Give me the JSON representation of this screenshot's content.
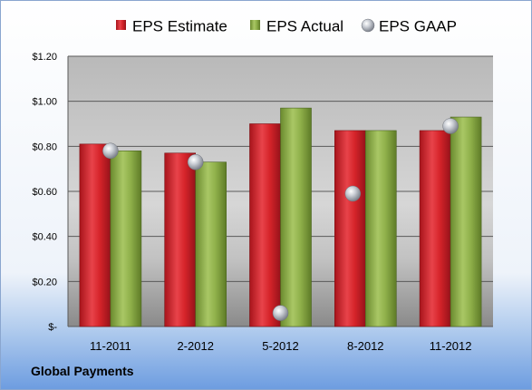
{
  "company": "Global Payments",
  "chart_data": {
    "type": "bar",
    "categories": [
      "11-2011",
      "2-2012",
      "5-2012",
      "8-2012",
      "11-2012"
    ],
    "series": [
      {
        "name": "EPS Estimate",
        "type": "bar",
        "color": "#d6242a",
        "values": [
          0.81,
          0.77,
          0.9,
          0.87,
          0.87
        ]
      },
      {
        "name": "EPS Actual",
        "type": "bar",
        "color": "#8fb04a",
        "values": [
          0.78,
          0.73,
          0.97,
          0.87,
          0.93
        ]
      },
      {
        "name": "EPS GAAP",
        "type": "scatter",
        "color": "#b8bcc4",
        "values": [
          0.78,
          0.73,
          0.06,
          0.59,
          0.89
        ]
      }
    ],
    "yticks": [
      0,
      0.2,
      0.4,
      0.6,
      0.8,
      1.0,
      1.2
    ],
    "ytick_labels": [
      "$-",
      "$0.20",
      "$0.40",
      "$0.60",
      "$0.80",
      "$1.00",
      "$1.20"
    ],
    "ylim": [
      0,
      1.2
    ],
    "grid": true,
    "legend_position": "top"
  }
}
